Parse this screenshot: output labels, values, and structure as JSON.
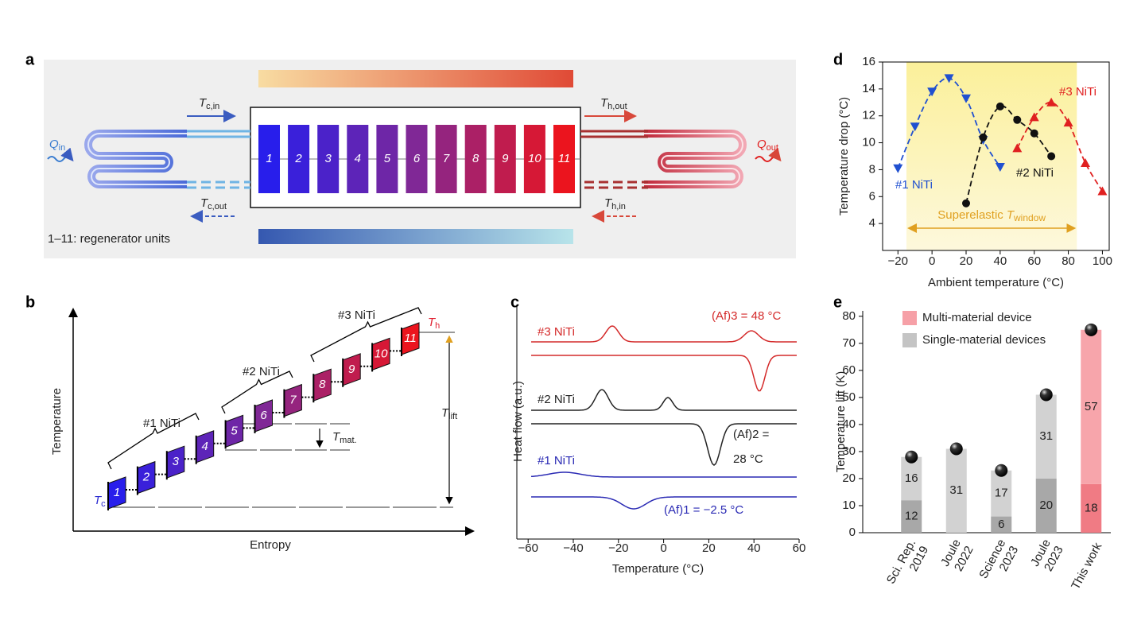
{
  "figure": {
    "panel_labels": [
      "a",
      "b",
      "c",
      "d",
      "e"
    ]
  },
  "panel_a": {
    "units": [
      "1",
      "2",
      "3",
      "4",
      "5",
      "6",
      "7",
      "8",
      "9",
      "10",
      "11"
    ],
    "tc_in": {
      "symbol": "T",
      "sub": "c,in"
    },
    "th_out": {
      "symbol": "T",
      "sub": "h,out"
    },
    "tc_out": {
      "symbol": "T",
      "sub": "c,out"
    },
    "th_in": {
      "symbol": "T",
      "sub": "h,in"
    },
    "q_in": {
      "symbol": "Q",
      "sub": "in"
    },
    "q_out": {
      "symbol": "Q",
      "sub": "out"
    },
    "caption": "1–11: regenerator units"
  },
  "panel_b": {
    "ylabel": "Temperature",
    "xlabel": "Entropy",
    "units": [
      "1",
      "2",
      "3",
      "4",
      "5",
      "6",
      "7",
      "8",
      "9",
      "10",
      "11"
    ],
    "groups": [
      "#1 NiTi",
      "#2 NiTi",
      "#3 NiTi"
    ],
    "t_c": {
      "symbol": "T",
      "sub": "c"
    },
    "t_h": {
      "symbol": "T",
      "sub": "h"
    },
    "t_lift": {
      "symbol": "T",
      "sub": "lift"
    },
    "t_mat": {
      "symbol": "T",
      "sub": "mat."
    }
  },
  "chart_data": [
    {
      "type": "line",
      "xlabel": "Temperature (°C)",
      "ylabel": "Heat flow (a.u.)",
      "xlim": [
        -65,
        60
      ],
      "xticks": [
        {
          "value": -60,
          "label": "−60"
        },
        {
          "value": -40,
          "label": "−40"
        },
        {
          "value": -20,
          "label": "−20"
        },
        0,
        20,
        40,
        60
      ],
      "series": [
        {
          "name": "#3 NiTi",
          "color": "#d42a2a"
        },
        {
          "name": "#2 NiTi",
          "color": "#222222"
        },
        {
          "name": "#1 NiTi",
          "color": "#2a2ab4"
        }
      ],
      "annotations": [
        [
          "(Af)3 = 48 °C"
        ],
        [
          "(Af)2 =",
          "28 °C"
        ],
        [
          "(Af)1 = −2.5 °C"
        ]
      ]
    },
    {
      "type": "scatter",
      "xlabel": "Ambient temperature (°C)",
      "ylabel": "Temperature drop (°C)",
      "xlim": [
        -29,
        104
      ],
      "ylim": [
        2,
        16
      ],
      "xticks": [
        {
          "value": -20,
          "label": "−20"
        },
        0,
        20,
        40,
        60,
        80,
        100
      ],
      "yticks": [
        4,
        6,
        8,
        10,
        12,
        14,
        16
      ],
      "window": [
        -15,
        85
      ],
      "annotation": {
        "text": "Superelastic",
        "symbol": "T",
        "sub": "window"
      },
      "series": [
        {
          "name": "#1 NiTi",
          "color": "#2050d0",
          "marker": "v",
          "x": [
            -20,
            -10,
            0,
            10,
            20,
            30,
            40
          ],
          "values": [
            8.1,
            11.2,
            13.8,
            14.8,
            13.3,
            10.2,
            8.2
          ]
        },
        {
          "name": "#2 NiTi",
          "color": "#111111",
          "marker": "o",
          "x": [
            20,
            30,
            40,
            50,
            60,
            70
          ],
          "values": [
            5.5,
            10.4,
            12.7,
            11.7,
            10.7,
            9.0
          ]
        },
        {
          "name": "#3 NiTi",
          "color": "#e02020",
          "marker": "^",
          "x": [
            50,
            60,
            70,
            80,
            90,
            100
          ],
          "values": [
            9.6,
            11.9,
            13.0,
            11.5,
            8.5,
            6.4
          ]
        }
      ]
    },
    {
      "type": "bar",
      "stacked": true,
      "ylabel": "Temperature lift (K)",
      "categories": [
        [
          "Sci. Rep.",
          "2019"
        ],
        [
          "Joule",
          "2022"
        ],
        [
          "Science",
          "2023"
        ],
        [
          "Joule",
          "2023"
        ],
        [
          "This work"
        ]
      ],
      "ylim": [
        0,
        82
      ],
      "yticks": [
        0,
        10,
        20,
        30,
        40,
        50,
        60,
        70,
        80
      ],
      "series": [
        {
          "values": [
            12,
            null,
            6,
            20,
            18
          ],
          "colors": [
            "#a8a8a8",
            "#a8a8a8",
            "#a8a8a8",
            "#a8a8a8",
            "#f07b84"
          ]
        },
        {
          "values": [
            16,
            31,
            17,
            31,
            57
          ],
          "colors": [
            "#d2d2d2",
            "#d2d2d2",
            "#d2d2d2",
            "#d2d2d2",
            "#f7a5ab"
          ]
        }
      ],
      "legend": [
        {
          "label": "Multi-material device",
          "color": "#f6a0a7"
        },
        {
          "label": "Single-material devices",
          "color": "#c4c4c4"
        }
      ],
      "legend_position": "upper left"
    }
  ]
}
